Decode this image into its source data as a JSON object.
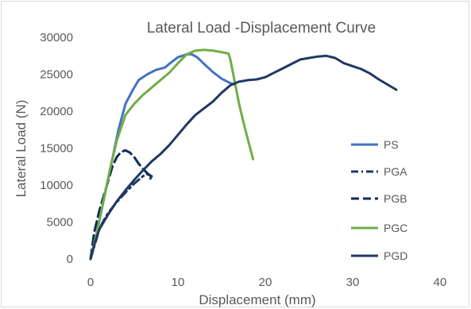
{
  "chart_data": {
    "type": "line",
    "title": "Lateral Load -Displacement Curve",
    "xlabel": "Displacement (mm)",
    "ylabel": "Lateral Load (N)",
    "xlim": [
      0,
      40
    ],
    "ylim": [
      0,
      30000
    ],
    "x_ticks": [
      "0",
      "10",
      "20",
      "30",
      "40"
    ],
    "y_ticks": [
      "0",
      "5000",
      "10000",
      "15000",
      "20000",
      "25000",
      "30000"
    ],
    "grid": false,
    "legend_position": "right",
    "series": [
      {
        "name": "PS",
        "color": "#4472C4",
        "dash": "solid",
        "points": [
          [
            0,
            0
          ],
          [
            0.8,
            4000
          ],
          [
            1.6,
            8500
          ],
          [
            2.4,
            13000
          ],
          [
            3.2,
            17500
          ],
          [
            4,
            21000
          ],
          [
            4.8,
            22800
          ],
          [
            5.5,
            24200
          ],
          [
            6.5,
            25000
          ],
          [
            7.5,
            25600
          ],
          [
            8.5,
            25900
          ],
          [
            9,
            26400
          ],
          [
            10,
            27300
          ],
          [
            11,
            27700
          ],
          [
            11.6,
            27700
          ],
          [
            12.2,
            27300
          ],
          [
            13,
            26400
          ],
          [
            14,
            25300
          ],
          [
            15,
            24400
          ],
          [
            16,
            23800
          ],
          [
            16.5,
            23600
          ]
        ]
      },
      {
        "name": "PGA",
        "color": "#1F3864",
        "dash": "dashdot",
        "points": [
          [
            0,
            0
          ],
          [
            0.5,
            2000
          ],
          [
            1,
            4000
          ],
          [
            1.5,
            5200
          ],
          [
            2,
            6200
          ],
          [
            3,
            7700
          ],
          [
            4,
            9000
          ],
          [
            5,
            10200
          ],
          [
            6,
            11200
          ],
          [
            6.5,
            11500
          ],
          [
            7,
            11200
          ],
          [
            6.8,
            10800
          ]
        ]
      },
      {
        "name": "PGB",
        "color": "#0D2A5A",
        "dash": "dash",
        "points": [
          [
            0,
            0
          ],
          [
            0.4,
            3500
          ],
          [
            1,
            6500
          ],
          [
            1.5,
            8500
          ],
          [
            2,
            10500
          ],
          [
            2.5,
            12500
          ],
          [
            3,
            13800
          ],
          [
            3.5,
            14500
          ],
          [
            4,
            14700
          ],
          [
            4.5,
            14400
          ],
          [
            5,
            13800
          ],
          [
            5.5,
            12900
          ],
          [
            6,
            12200
          ],
          [
            6.5,
            11600
          ],
          [
            7,
            11100
          ]
        ]
      },
      {
        "name": "PGC",
        "color": "#70AD47",
        "dash": "solid",
        "points": [
          [
            0,
            0
          ],
          [
            0.8,
            4000
          ],
          [
            1.5,
            8000
          ],
          [
            2.2,
            12000
          ],
          [
            3,
            16000
          ],
          [
            4,
            19500
          ],
          [
            5,
            21000
          ],
          [
            6,
            22200
          ],
          [
            7,
            23200
          ],
          [
            8,
            24200
          ],
          [
            9,
            25200
          ],
          [
            10,
            26500
          ],
          [
            11,
            27700
          ],
          [
            12,
            28200
          ],
          [
            13,
            28300
          ],
          [
            14,
            28200
          ],
          [
            15,
            28000
          ],
          [
            15.8,
            27800
          ],
          [
            16,
            27000
          ],
          [
            16.5,
            24000
          ],
          [
            17,
            21000
          ],
          [
            17.5,
            18500
          ],
          [
            18,
            16200
          ],
          [
            18.6,
            13500
          ]
        ]
      },
      {
        "name": "PGD",
        "color": "#203864",
        "dash": "solid",
        "points": [
          [
            0,
            0
          ],
          [
            0.5,
            2200
          ],
          [
            1,
            4000
          ],
          [
            2,
            6000
          ],
          [
            3,
            7800
          ],
          [
            4,
            9300
          ],
          [
            5,
            10700
          ],
          [
            6,
            12000
          ],
          [
            7,
            13200
          ],
          [
            8,
            14200
          ],
          [
            9,
            15400
          ],
          [
            10,
            16800
          ],
          [
            11,
            18200
          ],
          [
            12,
            19500
          ],
          [
            13,
            20400
          ],
          [
            14,
            21300
          ],
          [
            15,
            22500
          ],
          [
            16,
            23500
          ],
          [
            17,
            24000
          ],
          [
            18,
            24200
          ],
          [
            19,
            24300
          ],
          [
            20,
            24600
          ],
          [
            21,
            25200
          ],
          [
            22,
            25800
          ],
          [
            23,
            26400
          ],
          [
            24,
            27000
          ],
          [
            25,
            27200
          ],
          [
            26,
            27400
          ],
          [
            27,
            27500
          ],
          [
            28,
            27200
          ],
          [
            29,
            26500
          ],
          [
            30,
            26100
          ],
          [
            31,
            25700
          ],
          [
            32,
            25100
          ],
          [
            33,
            24300
          ],
          [
            34,
            23600
          ],
          [
            35,
            22900
          ]
        ]
      }
    ]
  }
}
